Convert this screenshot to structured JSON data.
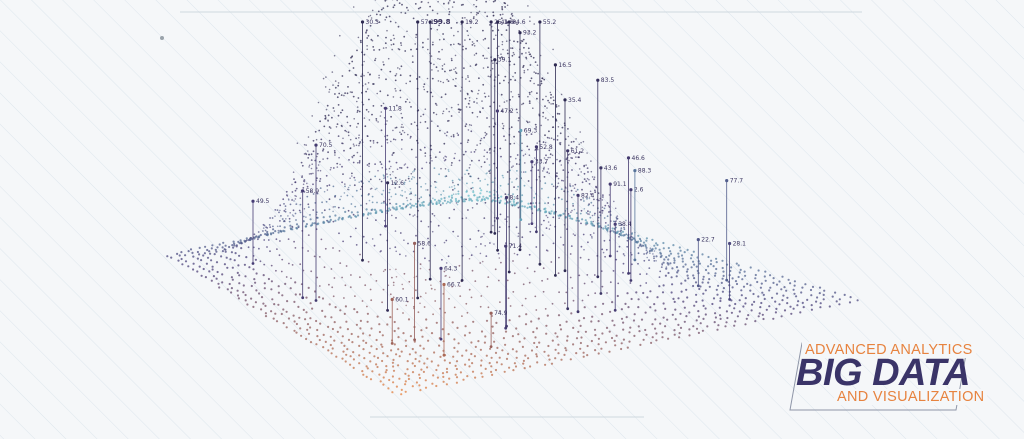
{
  "colors": {
    "background": "#f5f7f9",
    "orange": "#e7833f",
    "purple": "#3a3468",
    "teal": "#6fc7cf",
    "hatch": "#dfe7ee"
  },
  "title": {
    "line1": "ADVANCED ANALYTICS",
    "line2": "BIG DATA",
    "line3": "AND VISUALIZATION"
  },
  "data_labels": [
    "99.8",
    "60.1",
    "2.6",
    "58.6",
    "41.8",
    "82.4",
    "71.4",
    "28.1",
    "83.5",
    "91.1",
    "55.2",
    "77.7",
    "38.4",
    "64.3",
    "12.6",
    "49.5",
    "19.2",
    "88.3",
    "33.7",
    "46.6",
    "70.5",
    "58.9",
    "25.1",
    "93.2",
    "11.8",
    "39.1",
    "66.7",
    "43.6",
    "52.8",
    "8.4",
    "74.9",
    "30.3",
    "61.2",
    "16.5",
    "84.6",
    "47.2",
    "22.7",
    "69.3",
    "35.4",
    "57.1"
  ]
}
